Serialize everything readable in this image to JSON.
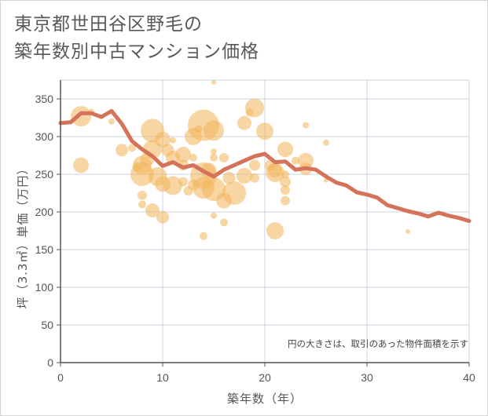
{
  "title_lines": [
    "東京都世田谷区野毛の",
    "築年数別中古マンション価格"
  ],
  "colors": {
    "bubble": "#f2b45a",
    "line": "#d4735a",
    "grid": "#c9d6e2",
    "axis": "#555555"
  },
  "chart_data": {
    "type": "scatter",
    "xlabel": "築年数（年）",
    "ylabel": "坪（3.3㎡）単価（万円）",
    "note": "円の大きさは、取引のあった物件面積を示す",
    "xlim": [
      0,
      40
    ],
    "ylim": [
      0,
      375
    ],
    "xticks": [
      0,
      10,
      20,
      30,
      40
    ],
    "yticks": [
      0,
      50,
      100,
      150,
      200,
      250,
      300,
      350
    ],
    "grid": true,
    "bubbles": [
      {
        "x": 2,
        "y": 327,
        "r": 13
      },
      {
        "x": 2,
        "y": 262,
        "r": 10
      },
      {
        "x": 3,
        "y": 333,
        "r": 4
      },
      {
        "x": 5,
        "y": 320,
        "r": 4
      },
      {
        "x": 6,
        "y": 282,
        "r": 8
      },
      {
        "x": 7,
        "y": 285,
        "r": 5
      },
      {
        "x": 7.5,
        "y": 260,
        "r": 6
      },
      {
        "x": 8,
        "y": 250,
        "r": 15
      },
      {
        "x": 8,
        "y": 262,
        "r": 12
      },
      {
        "x": 8,
        "y": 222,
        "r": 6
      },
      {
        "x": 8,
        "y": 210,
        "r": 5
      },
      {
        "x": 8.5,
        "y": 270,
        "r": 9
      },
      {
        "x": 9,
        "y": 308,
        "r": 15
      },
      {
        "x": 9,
        "y": 283,
        "r": 12
      },
      {
        "x": 9,
        "y": 202,
        "r": 9
      },
      {
        "x": 9.5,
        "y": 247,
        "r": 12
      },
      {
        "x": 10,
        "y": 296,
        "r": 10
      },
      {
        "x": 10,
        "y": 237,
        "r": 10
      },
      {
        "x": 10,
        "y": 193,
        "r": 8
      },
      {
        "x": 10.5,
        "y": 282,
        "r": 8
      },
      {
        "x": 11,
        "y": 272,
        "r": 9
      },
      {
        "x": 11,
        "y": 235,
        "r": 12
      },
      {
        "x": 11,
        "y": 295,
        "r": 4
      },
      {
        "x": 12,
        "y": 276,
        "r": 10
      },
      {
        "x": 12,
        "y": 262,
        "r": 7
      },
      {
        "x": 12,
        "y": 240,
        "r": 6
      },
      {
        "x": 12.5,
        "y": 228,
        "r": 6
      },
      {
        "x": 13,
        "y": 300,
        "r": 11
      },
      {
        "x": 13,
        "y": 272,
        "r": 5
      },
      {
        "x": 13,
        "y": 236,
        "r": 7
      },
      {
        "x": 13.5,
        "y": 310,
        "r": 5
      },
      {
        "x": 14,
        "y": 315,
        "r": 20
      },
      {
        "x": 14,
        "y": 248,
        "r": 17
      },
      {
        "x": 14,
        "y": 232,
        "r": 14
      },
      {
        "x": 14,
        "y": 168,
        "r": 5
      },
      {
        "x": 14.5,
        "y": 255,
        "r": 10
      },
      {
        "x": 15,
        "y": 308,
        "r": 13
      },
      {
        "x": 15,
        "y": 280,
        "r": 4
      },
      {
        "x": 15,
        "y": 272,
        "r": 5
      },
      {
        "x": 15,
        "y": 230,
        "r": 15
      },
      {
        "x": 15,
        "y": 195,
        "r": 4
      },
      {
        "x": 15,
        "y": 372,
        "r": 3
      },
      {
        "x": 16,
        "y": 272,
        "r": 6
      },
      {
        "x": 16,
        "y": 215,
        "r": 10
      },
      {
        "x": 16,
        "y": 186,
        "r": 5
      },
      {
        "x": 16.5,
        "y": 245,
        "r": 8
      },
      {
        "x": 17,
        "y": 225,
        "r": 15
      },
      {
        "x": 18,
        "y": 248,
        "r": 10
      },
      {
        "x": 18,
        "y": 318,
        "r": 9
      },
      {
        "x": 18.5,
        "y": 332,
        "r": 5
      },
      {
        "x": 19,
        "y": 338,
        "r": 12
      },
      {
        "x": 19,
        "y": 262,
        "r": 7
      },
      {
        "x": 19,
        "y": 245,
        "r": 6
      },
      {
        "x": 20,
        "y": 307,
        "r": 11
      },
      {
        "x": 20.5,
        "y": 262,
        "r": 7
      },
      {
        "x": 21,
        "y": 255,
        "r": 9
      },
      {
        "x": 21,
        "y": 252,
        "r": 12
      },
      {
        "x": 21,
        "y": 175,
        "r": 11
      },
      {
        "x": 22,
        "y": 283,
        "r": 10
      },
      {
        "x": 22,
        "y": 240,
        "r": 7
      },
      {
        "x": 22,
        "y": 229,
        "r": 6
      },
      {
        "x": 22,
        "y": 215,
        "r": 6
      },
      {
        "x": 22,
        "y": 250,
        "r": 5
      },
      {
        "x": 23,
        "y": 268,
        "r": 5
      },
      {
        "x": 24,
        "y": 268,
        "r": 10
      },
      {
        "x": 24,
        "y": 257,
        "r": 8
      },
      {
        "x": 24,
        "y": 315,
        "r": 4
      },
      {
        "x": 26,
        "y": 292,
        "r": 4
      },
      {
        "x": 26,
        "y": 242,
        "r": 3
      },
      {
        "x": 34,
        "y": 174,
        "r": 3
      }
    ],
    "trend": {
      "x": [
        0,
        1,
        2,
        3,
        4,
        5,
        6,
        7,
        8,
        9,
        10,
        11,
        12,
        13,
        14,
        15,
        16,
        17,
        18,
        19,
        20,
        21,
        22,
        23,
        24,
        25,
        26,
        27,
        28,
        29,
        30,
        31,
        32,
        33,
        34,
        35,
        36,
        37,
        38,
        39,
        40
      ],
      "y": [
        318,
        319,
        331,
        331,
        326,
        334,
        317,
        294,
        283,
        274,
        261,
        266,
        259,
        262,
        254,
        247,
        256,
        262,
        268,
        274,
        277,
        266,
        267,
        256,
        258,
        256,
        247,
        239,
        235,
        226,
        223,
        219,
        209,
        205,
        201,
        198,
        194,
        199,
        195,
        192,
        188
      ]
    }
  }
}
